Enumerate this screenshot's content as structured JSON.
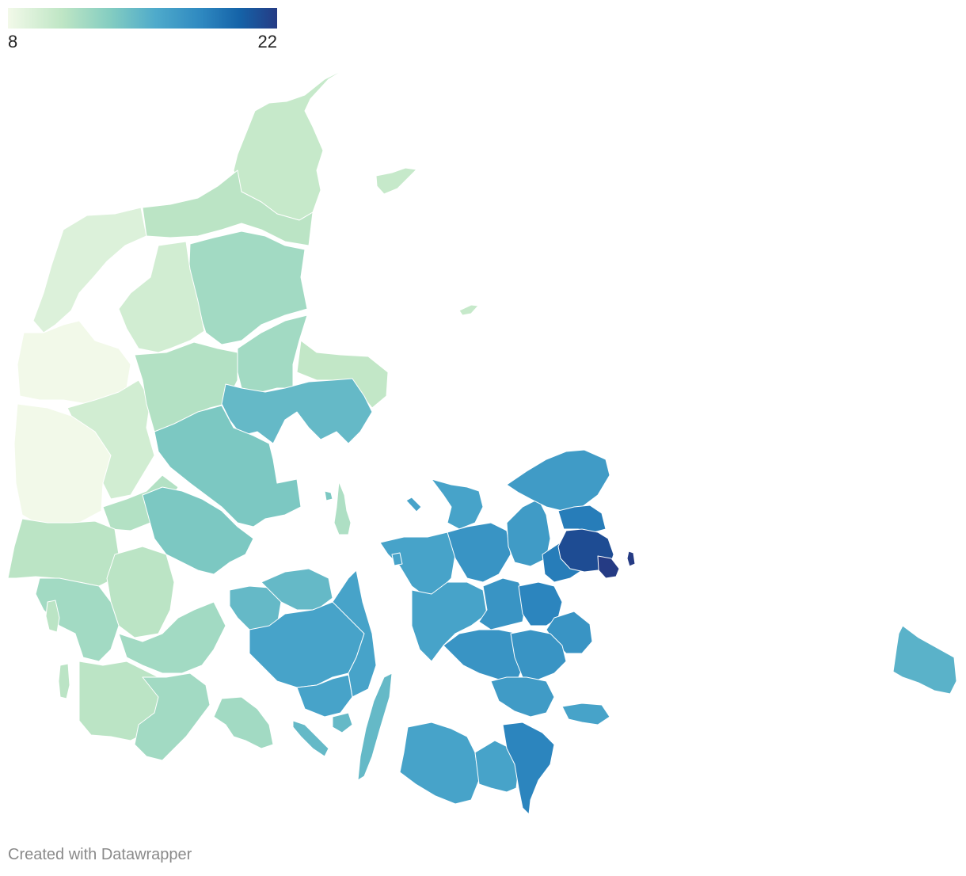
{
  "legend": {
    "min_label": "8",
    "max_label": "22",
    "min_value": 8,
    "max_value": 22,
    "colors": [
      "#f2f9e9",
      "#bfe6c5",
      "#84cdc1",
      "#4eaacb",
      "#2e88c0",
      "#1563a8",
      "#253b84"
    ]
  },
  "credit": "Created with Datawrapper",
  "regions": [
    {
      "group": "north-jutland-tip",
      "value": 10
    },
    {
      "group": "north-jutland",
      "value": 10.5
    },
    {
      "group": "northwest-jutland",
      "value": 9
    },
    {
      "group": "west-jutland-lightest",
      "value": 8
    },
    {
      "group": "west-jutland",
      "value": 9.5
    },
    {
      "group": "mid-jutland",
      "value": 10.8
    },
    {
      "group": "east-jutland",
      "value": 11.5
    },
    {
      "group": "djursland",
      "value": 10.2
    },
    {
      "group": "aarhus-area",
      "value": 14
    },
    {
      "group": "skanderborg-horsens",
      "value": 13
    },
    {
      "group": "vejle-kolding",
      "value": 13
    },
    {
      "group": "southwest-jutland",
      "value": 10.5
    },
    {
      "group": "south-jutland",
      "value": 11.5
    },
    {
      "group": "als",
      "value": 11.5
    },
    {
      "group": "funen-west",
      "value": 14
    },
    {
      "group": "funen",
      "value": 15.5
    },
    {
      "group": "funen-south-islands",
      "value": 14
    },
    {
      "group": "langeland",
      "value": 14
    },
    {
      "group": "samsoe",
      "value": 11
    },
    {
      "group": "laesoe",
      "value": 10
    },
    {
      "group": "anholt",
      "value": 10
    },
    {
      "group": "zealand-west",
      "value": 15.5
    },
    {
      "group": "zealand-north",
      "value": 16
    },
    {
      "group": "zealand-central",
      "value": 16.5
    },
    {
      "group": "koege-stevns",
      "value": 17.5
    },
    {
      "group": "copenhagen-suburbs",
      "value": 18
    },
    {
      "group": "copenhagen",
      "value": 21
    },
    {
      "group": "amager",
      "value": 22
    },
    {
      "group": "south-zealand",
      "value": 16
    },
    {
      "group": "mon",
      "value": 15.5
    },
    {
      "group": "lolland",
      "value": 15.5
    },
    {
      "group": "falster",
      "value": 17.5
    },
    {
      "group": "bornholm",
      "value": 14.5
    }
  ]
}
